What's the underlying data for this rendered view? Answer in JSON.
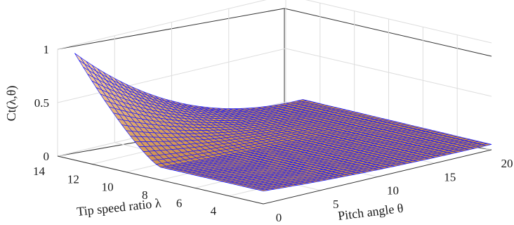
{
  "chart_data": {
    "type": "surface",
    "title": "",
    "xlabel": "Pitch angle θ",
    "ylabel": "Tip speed ratio λ",
    "zlabel": "Ct(λ,θ)",
    "xlim": [
      0,
      20
    ],
    "ylim": [
      2,
      14
    ],
    "zlim": [
      0,
      1
    ],
    "x_ticks": [
      "0",
      "5",
      "10",
      "15",
      "20"
    ],
    "y_ticks": [
      "4",
      "6",
      "8",
      "10",
      "12",
      "14"
    ],
    "z_ticks": [
      "0",
      "0.5",
      "1"
    ],
    "grid": true,
    "colors": {
      "mesh": "#1a1aff",
      "face_dark": "#c8873f",
      "face_light": "#ffd9a6"
    },
    "corner_values": [
      {
        "theta": 0,
        "lambda": 13,
        "ct": 1.0
      },
      {
        "theta": 0,
        "lambda": 8,
        "ct": 0.12
      },
      {
        "theta": 0,
        "lambda": 2,
        "ct": 0.12
      },
      {
        "theta": 20,
        "lambda": 2,
        "ct": 0.05
      },
      {
        "theta": 20,
        "lambda": 13,
        "ct": 0.06
      }
    ]
  }
}
